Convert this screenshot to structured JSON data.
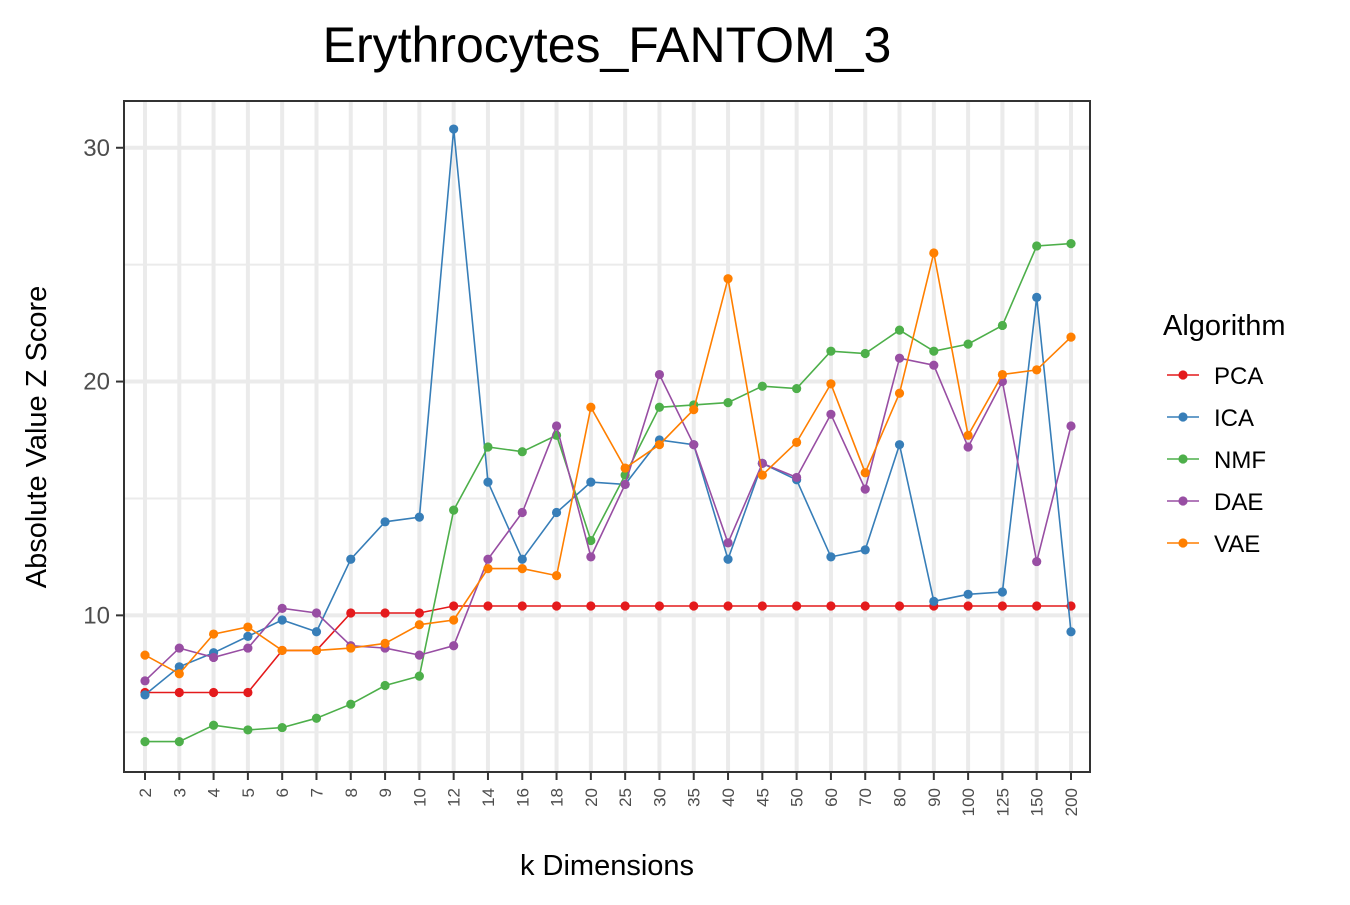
{
  "chart_data": {
    "type": "line",
    "title": "Erythrocytes_FANTOM_3",
    "xlabel": "k Dimensions",
    "ylabel": "Absolute Value Z Score",
    "categories": [
      "2",
      "3",
      "4",
      "5",
      "6",
      "7",
      "8",
      "9",
      "10",
      "12",
      "14",
      "16",
      "18",
      "20",
      "25",
      "30",
      "35",
      "40",
      "45",
      "50",
      "60",
      "70",
      "80",
      "90",
      "100",
      "125",
      "150",
      "200"
    ],
    "ylim": [
      3.3,
      32.0
    ],
    "yticks": [
      10,
      20,
      30
    ],
    "grid": true,
    "legend_title": "Algorithm",
    "legend_position": "right",
    "series": [
      {
        "name": "PCA",
        "color": "#e41a1c",
        "values": [
          6.7,
          6.7,
          6.7,
          6.7,
          8.5,
          8.5,
          10.1,
          10.1,
          10.1,
          10.4,
          10.4,
          10.4,
          10.4,
          10.4,
          10.4,
          10.4,
          10.4,
          10.4,
          10.4,
          10.4,
          10.4,
          10.4,
          10.4,
          10.4,
          10.4,
          10.4,
          10.4,
          10.4
        ]
      },
      {
        "name": "ICA",
        "color": "#377eb8",
        "values": [
          6.6,
          7.8,
          8.4,
          9.1,
          9.8,
          9.3,
          12.4,
          14.0,
          14.2,
          30.8,
          15.7,
          12.4,
          14.4,
          15.7,
          15.6,
          17.5,
          17.3,
          12.4,
          16.5,
          15.8,
          12.5,
          12.8,
          17.3,
          10.6,
          10.9,
          11.0,
          23.6,
          9.3
        ]
      },
      {
        "name": "NMF",
        "color": "#4daf4a",
        "values": [
          4.6,
          4.6,
          5.3,
          5.1,
          5.2,
          5.6,
          6.2,
          7.0,
          7.4,
          14.5,
          17.2,
          17.0,
          17.7,
          13.2,
          16.0,
          18.9,
          19.0,
          19.1,
          19.8,
          19.7,
          21.3,
          21.2,
          22.2,
          21.3,
          21.6,
          22.4,
          25.8,
          25.9
        ]
      },
      {
        "name": "DAE",
        "color": "#984ea3",
        "values": [
          7.2,
          8.6,
          8.2,
          8.6,
          10.3,
          10.1,
          8.7,
          8.6,
          8.3,
          8.7,
          12.4,
          14.4,
          18.1,
          12.5,
          15.6,
          20.3,
          17.3,
          13.1,
          16.5,
          15.9,
          18.6,
          15.4,
          21.0,
          20.7,
          17.2,
          20.0,
          12.3,
          18.1
        ]
      },
      {
        "name": "VAE",
        "color": "#ff7f00",
        "values": [
          8.3,
          7.5,
          9.2,
          9.5,
          8.5,
          8.5,
          8.6,
          8.8,
          9.6,
          9.8,
          12.0,
          12.0,
          11.7,
          18.9,
          16.3,
          17.3,
          18.8,
          24.4,
          16.0,
          17.4,
          19.9,
          16.1,
          19.5,
          25.5,
          17.7,
          20.3,
          20.5,
          21.9
        ]
      }
    ]
  }
}
